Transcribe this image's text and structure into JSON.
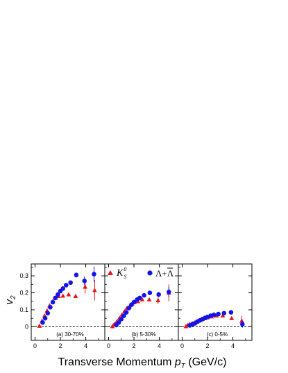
{
  "chart_data": {
    "type": "scatter",
    "ylabel_main": "v",
    "ylabel_sub": "2",
    "xlabel_main": "Transverse Momentum ",
    "xlabel_var": "p",
    "xlabel_sub": "T",
    "xlabel_unit": " (GeV/c)",
    "xlim": [
      -0.3,
      5.5
    ],
    "ylim": [
      -0.08,
      0.37
    ],
    "xticks": [
      0,
      2,
      4
    ],
    "yticks": [
      0,
      0.1,
      0.2,
      0.3
    ],
    "ytick_labels": [
      "0",
      "0.1",
      "0.2",
      "0.3"
    ],
    "zero_line": "dashed",
    "legend": {
      "placement": "top of middle panel",
      "k0s_label": "K",
      "k0s_sup": "0",
      "k0s_sub": "S",
      "lambda_label": "Λ+Λ",
      "k0s_color": "#e8141c",
      "lambda_color": "#1414e8"
    },
    "colors": {
      "k0s": "#e8141c",
      "lambda": "#1414e8"
    },
    "panels": [
      {
        "label": "(a) 30-70%",
        "k0s": [
          [
            0.35,
            0.005
          ],
          [
            0.55,
            0.035
          ],
          [
            0.75,
            0.065
          ],
          [
            0.95,
            0.095
          ],
          [
            1.15,
            0.125
          ],
          [
            1.4,
            0.15
          ],
          [
            1.6,
            0.17
          ],
          [
            1.85,
            0.18
          ],
          [
            2.2,
            0.182
          ],
          [
            2.65,
            0.19
          ],
          [
            3.2,
            0.18
          ],
          [
            3.95,
            0.235,
            0.04
          ],
          [
            4.7,
            0.215,
            0.06
          ]
        ],
        "lambda": [
          [
            0.6,
            0.025
          ],
          [
            0.8,
            0.05
          ],
          [
            1.0,
            0.08
          ],
          [
            1.2,
            0.115
          ],
          [
            1.4,
            0.145
          ],
          [
            1.6,
            0.17
          ],
          [
            1.8,
            0.19
          ],
          [
            2.0,
            0.21
          ],
          [
            2.2,
            0.225
          ],
          [
            2.45,
            0.245
          ],
          [
            2.8,
            0.26
          ],
          [
            3.25,
            0.305,
            0.015
          ],
          [
            3.9,
            0.27,
            0.025
          ],
          [
            4.65,
            0.31,
            0.045
          ]
        ]
      },
      {
        "label": "(b) 5-30%",
        "k0s": [
          [
            0.3,
            0.002
          ],
          [
            0.45,
            0.015
          ],
          [
            0.65,
            0.03
          ],
          [
            0.85,
            0.05
          ],
          [
            1.05,
            0.07
          ],
          [
            1.25,
            0.09
          ],
          [
            1.45,
            0.11
          ],
          [
            1.65,
            0.12
          ],
          [
            1.85,
            0.135
          ],
          [
            2.05,
            0.145
          ],
          [
            2.3,
            0.15
          ],
          [
            2.65,
            0.16
          ],
          [
            3.2,
            0.16
          ],
          [
            3.9,
            0.155,
            0.02
          ],
          [
            4.75,
            0.2,
            0.05
          ]
        ],
        "lambda": [
          [
            0.6,
            0.01
          ],
          [
            0.8,
            0.025
          ],
          [
            1.0,
            0.045
          ],
          [
            1.2,
            0.065
          ],
          [
            1.4,
            0.085
          ],
          [
            1.6,
            0.11
          ],
          [
            1.8,
            0.13
          ],
          [
            2.0,
            0.145
          ],
          [
            2.25,
            0.16
          ],
          [
            2.45,
            0.17
          ],
          [
            2.8,
            0.185
          ],
          [
            3.25,
            0.2,
            0.01
          ],
          [
            3.95,
            0.19,
            0.015
          ],
          [
            4.75,
            0.205,
            0.03
          ]
        ]
      },
      {
        "label": "(c) 0-5%",
        "k0s": [
          [
            0.3,
            0.002
          ],
          [
            0.45,
            0.01
          ],
          [
            0.6,
            0.015
          ],
          [
            0.8,
            0.02
          ],
          [
            1.0,
            0.025
          ],
          [
            1.2,
            0.032
          ],
          [
            1.4,
            0.038
          ],
          [
            1.6,
            0.045
          ],
          [
            1.8,
            0.05
          ],
          [
            2.0,
            0.055
          ],
          [
            2.3,
            0.06
          ],
          [
            2.7,
            0.065
          ],
          [
            3.2,
            0.065
          ],
          [
            3.9,
            0.05,
            0.01
          ],
          [
            4.7,
            0.035,
            0.03
          ]
        ],
        "lambda": [
          [
            0.6,
            0.008
          ],
          [
            0.8,
            0.015
          ],
          [
            1.0,
            0.02
          ],
          [
            1.2,
            0.03
          ],
          [
            1.4,
            0.038
          ],
          [
            1.6,
            0.045
          ],
          [
            1.8,
            0.052
          ],
          [
            2.0,
            0.058
          ],
          [
            2.25,
            0.065
          ],
          [
            2.5,
            0.07
          ],
          [
            2.85,
            0.075
          ],
          [
            3.3,
            0.08
          ],
          [
            3.85,
            0.085,
            0.01
          ],
          [
            4.75,
            0.015,
            0.02
          ]
        ]
      }
    ]
  }
}
